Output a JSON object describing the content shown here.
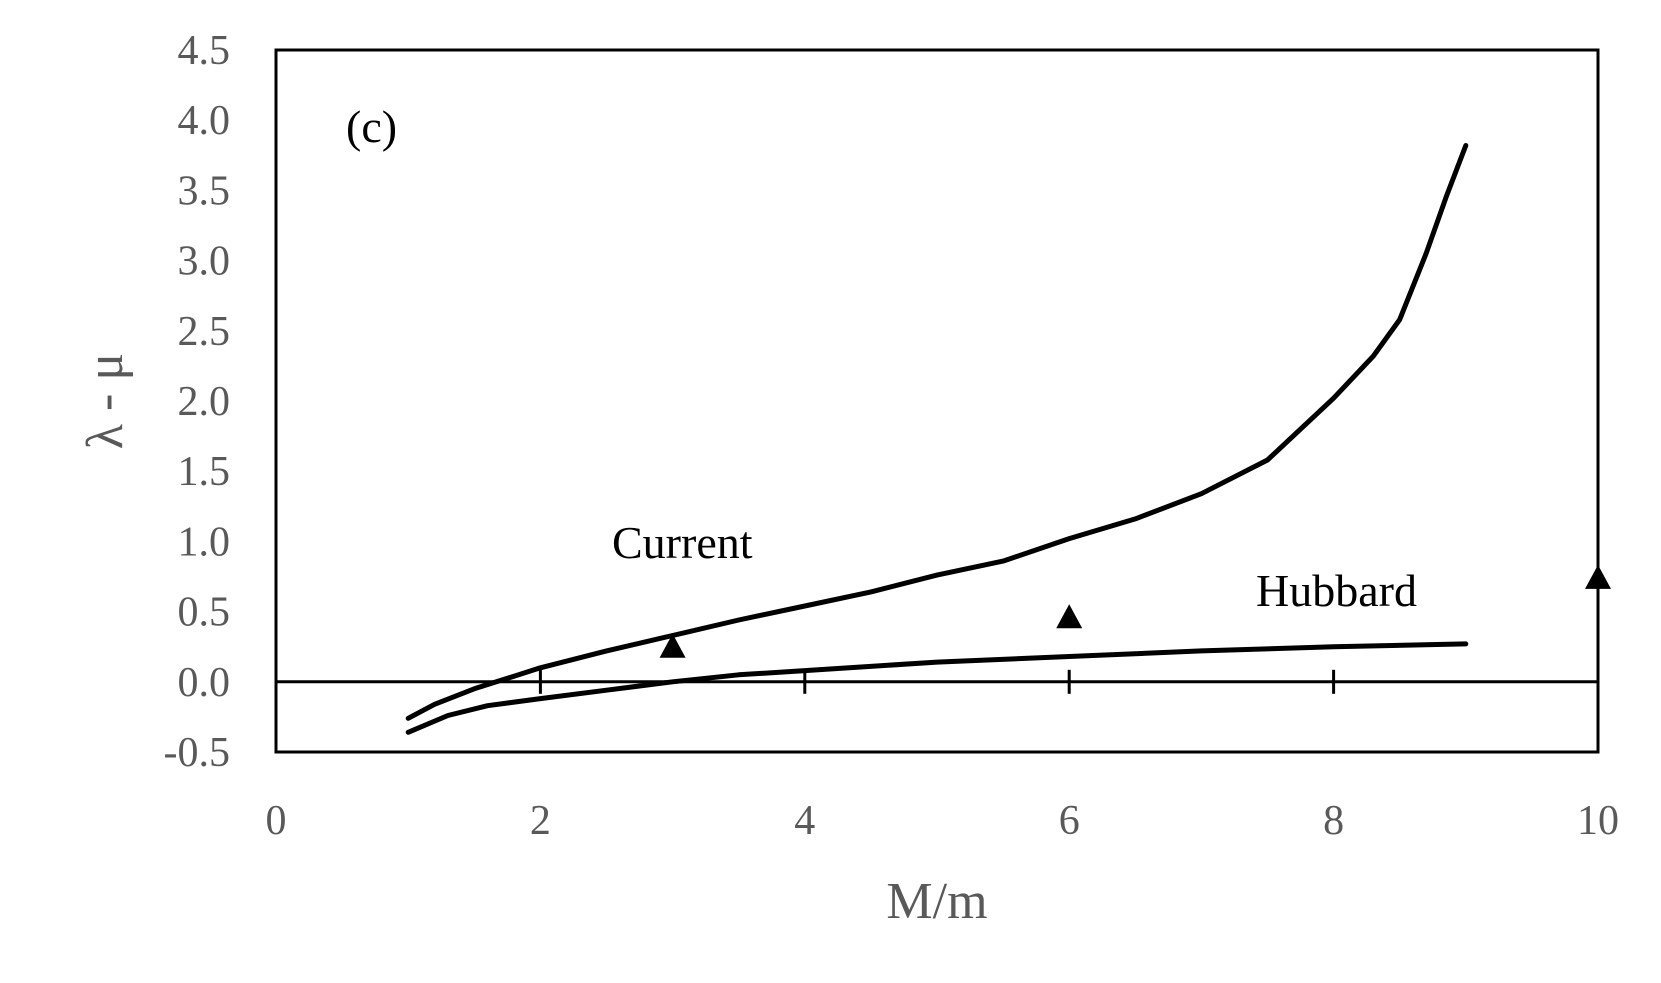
{
  "chart_data": {
    "type": "line",
    "panel_label": "(c)",
    "xlabel": "M/m",
    "ylabel": "λ - μ",
    "xlim": [
      0,
      10
    ],
    "ylim": [
      -0.5,
      4.5
    ],
    "x_ticks": [
      "0",
      "2",
      "4",
      "6",
      "8",
      "10"
    ],
    "y_ticks": [
      "4.5",
      "4.0",
      "3.5",
      "3.0",
      "2.5",
      "2.0",
      "1.5",
      "1.0",
      "0.5",
      "0.0",
      "-0.5"
    ],
    "grid": false,
    "series": [
      {
        "name": "Current",
        "style": "line",
        "x": [
          1.0,
          1.2,
          1.5,
          1.8,
          2.0,
          2.5,
          3.0,
          3.5,
          4.0,
          4.5,
          5.0,
          5.5,
          6.0,
          6.5,
          7.0,
          7.5,
          8.0,
          8.3,
          8.5,
          8.7,
          8.85,
          9.0
        ],
        "y": [
          -0.26,
          -0.16,
          -0.05,
          0.04,
          0.1,
          0.22,
          0.33,
          0.44,
          0.54,
          0.64,
          0.76,
          0.86,
          1.02,
          1.16,
          1.34,
          1.58,
          2.02,
          2.32,
          2.58,
          3.05,
          3.45,
          3.82
        ]
      },
      {
        "name": "Hubbard",
        "style": "line",
        "x": [
          1.0,
          1.3,
          1.6,
          2.0,
          2.5,
          3.0,
          3.5,
          4.0,
          5.0,
          6.0,
          7.0,
          8.0,
          9.0
        ],
        "y": [
          -0.36,
          -0.24,
          -0.17,
          -0.12,
          -0.06,
          0.0,
          0.05,
          0.08,
          0.14,
          0.18,
          0.22,
          0.25,
          0.27
        ]
      },
      {
        "name": "triangles",
        "style": "marker",
        "x": [
          3,
          6,
          10
        ],
        "y": [
          0.24,
          0.45,
          0.73
        ]
      }
    ],
    "zero_line": true,
    "colors": {
      "line": "#000000",
      "text": "#595959"
    }
  }
}
